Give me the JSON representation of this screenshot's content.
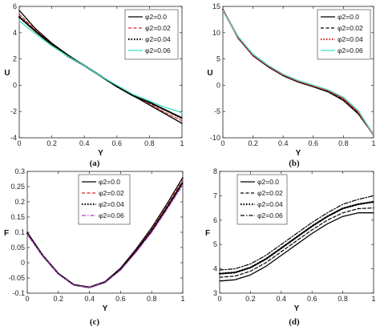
{
  "chart_data": [
    {
      "id": "a",
      "type": "line",
      "caption": "(a)",
      "xlabel": "Y",
      "ylabel": "U",
      "xlim": [
        0,
        1
      ],
      "ylim": [
        -4,
        6
      ],
      "xticks": [
        "0",
        "0.2",
        "0.4",
        "0.6",
        "0.8",
        "1"
      ],
      "yticks": [
        "-4",
        "-2",
        "0",
        "2",
        "4",
        "6"
      ],
      "legend_position": "top-right",
      "series": [
        {
          "name": "φ2=0.0",
          "color": "#000000",
          "style": "solid",
          "x": [
            0,
            0.1,
            0.2,
            0.3,
            0.4,
            0.5,
            0.6,
            0.7,
            0.8,
            0.9,
            1
          ],
          "y": [
            5.7,
            4.3,
            3.2,
            2.3,
            1.5,
            0.7,
            -0.1,
            -0.8,
            -1.5,
            -2.2,
            -2.9
          ]
        },
        {
          "name": "φ2=0.02",
          "color": "#d62728",
          "style": "dashed",
          "x": [
            0,
            0.1,
            0.2,
            0.3,
            0.4,
            0.5,
            0.6,
            0.7,
            0.8,
            0.9,
            1
          ],
          "y": [
            5.4,
            4.2,
            3.1,
            2.2,
            1.5,
            0.7,
            -0.1,
            -0.8,
            -1.4,
            -2.1,
            -2.7
          ]
        },
        {
          "name": "φ2=0.04",
          "color": "#000000",
          "style": "dotted",
          "x": [
            0,
            0.1,
            0.2,
            0.3,
            0.4,
            0.5,
            0.6,
            0.7,
            0.8,
            0.9,
            1
          ],
          "y": [
            5.2,
            4.1,
            3.1,
            2.2,
            1.5,
            0.7,
            -0.1,
            -0.8,
            -1.3,
            -1.9,
            -2.5
          ]
        },
        {
          "name": "φ2=0.06",
          "color": "#40e0c0",
          "style": "solid",
          "x": [
            0,
            0.1,
            0.2,
            0.3,
            0.4,
            0.5,
            0.6,
            0.7,
            0.8,
            0.9,
            1
          ],
          "y": [
            4.9,
            3.9,
            3.0,
            2.2,
            1.5,
            0.7,
            0.0,
            -0.7,
            -1.2,
            -1.7,
            -2.1
          ]
        }
      ]
    },
    {
      "id": "b",
      "type": "line",
      "caption": "(b)",
      "xlabel": "Y",
      "ylabel": "U",
      "xlim": [
        0,
        1
      ],
      "ylim": [
        -10,
        15
      ],
      "xticks": [
        "0",
        "0.2",
        "0.4",
        "0.6",
        "0.8",
        "1"
      ],
      "yticks": [
        "-10",
        "-5",
        "0",
        "5",
        "10",
        "15"
      ],
      "legend_position": "top-right",
      "series": [
        {
          "name": "φ2=0.0",
          "color": "#000000",
          "style": "solid",
          "x": [
            0,
            0.1,
            0.2,
            0.3,
            0.4,
            0.5,
            0.6,
            0.7,
            0.8,
            0.9,
            1
          ],
          "y": [
            14.5,
            9.0,
            5.6,
            3.5,
            1.8,
            0.6,
            -0.3,
            -1.3,
            -2.9,
            -5.5,
            -9.5
          ]
        },
        {
          "name": "φ2=0.02",
          "color": "#000000",
          "style": "dashed",
          "x": [
            0,
            0.1,
            0.2,
            0.3,
            0.4,
            0.5,
            0.6,
            0.7,
            0.8,
            0.9,
            1
          ],
          "y": [
            14.4,
            9.1,
            5.7,
            3.6,
            1.9,
            0.7,
            -0.2,
            -1.1,
            -2.7,
            -5.3,
            -9.5
          ]
        },
        {
          "name": "φ2=0.04",
          "color": "#d62728",
          "style": "dotted",
          "x": [
            0,
            0.1,
            0.2,
            0.3,
            0.4,
            0.5,
            0.6,
            0.7,
            0.8,
            0.9,
            1
          ],
          "y": [
            14.3,
            9.2,
            5.8,
            3.7,
            2.0,
            0.8,
            -0.1,
            -1.0,
            -2.5,
            -5.1,
            -9.5
          ]
        },
        {
          "name": "φ2=0.06",
          "color": "#40e0c0",
          "style": "solid",
          "x": [
            0,
            0.1,
            0.2,
            0.3,
            0.4,
            0.5,
            0.6,
            0.7,
            0.8,
            0.9,
            1
          ],
          "y": [
            14.2,
            9.3,
            5.9,
            3.8,
            2.1,
            0.9,
            0.0,
            -0.9,
            -2.3,
            -4.9,
            -9.5
          ]
        }
      ]
    },
    {
      "id": "c",
      "type": "line",
      "caption": "(c)",
      "xlabel": "Y",
      "ylabel": "F",
      "xlim": [
        0,
        1
      ],
      "ylim": [
        -0.1,
        0.3
      ],
      "xticks": [
        "0",
        "0.2",
        "0.4",
        "0.6",
        "0.8",
        "1"
      ],
      "yticks": [
        "-0.1",
        "-0.05",
        "0",
        "0.05",
        "0.1",
        "0.15",
        "0.2",
        "0.25",
        "0.3"
      ],
      "legend_position": "top-left",
      "series": [
        {
          "name": "φ2=0.0",
          "color": "#000000",
          "style": "solid",
          "x": [
            0,
            0.1,
            0.2,
            0.3,
            0.4,
            0.5,
            0.6,
            0.7,
            0.8,
            0.9,
            1
          ],
          "y": [
            0.1,
            0.025,
            -0.035,
            -0.072,
            -0.08,
            -0.062,
            -0.018,
            0.045,
            0.115,
            0.195,
            0.28
          ]
        },
        {
          "name": "φ2=0.02",
          "color": "#d62728",
          "style": "dashed",
          "x": [
            0,
            0.1,
            0.2,
            0.3,
            0.4,
            0.5,
            0.6,
            0.7,
            0.8,
            0.9,
            1
          ],
          "y": [
            0.098,
            0.024,
            -0.036,
            -0.073,
            -0.08,
            -0.063,
            -0.02,
            0.041,
            0.11,
            0.188,
            0.272
          ]
        },
        {
          "name": "φ2=0.04",
          "color": "#000000",
          "style": "dotted",
          "x": [
            0,
            0.1,
            0.2,
            0.3,
            0.4,
            0.5,
            0.6,
            0.7,
            0.8,
            0.9,
            1
          ],
          "y": [
            0.096,
            0.023,
            -0.036,
            -0.073,
            -0.081,
            -0.064,
            -0.022,
            0.038,
            0.105,
            0.182,
            0.264
          ]
        },
        {
          "name": "φ2=0.06",
          "color": "#b03cc8",
          "style": "dashdot",
          "x": [
            0,
            0.1,
            0.2,
            0.3,
            0.4,
            0.5,
            0.6,
            0.7,
            0.8,
            0.9,
            1
          ],
          "y": [
            0.094,
            0.022,
            -0.037,
            -0.074,
            -0.081,
            -0.065,
            -0.024,
            0.035,
            0.1,
            0.176,
            0.256
          ]
        }
      ]
    },
    {
      "id": "d",
      "type": "line",
      "caption": "(d)",
      "xlabel": "Y",
      "ylabel": "F",
      "xlim": [
        0,
        1
      ],
      "ylim": [
        3,
        8
      ],
      "xticks": [
        "0",
        "0.2",
        "0.4",
        "0.6",
        "0.8",
        "1"
      ],
      "yticks": [
        "3",
        "4",
        "5",
        "6",
        "7",
        "8"
      ],
      "legend_position": "top-left",
      "series": [
        {
          "name": "φ2=0.0",
          "color": "#000000",
          "style": "solid",
          "x": [
            0,
            0.1,
            0.2,
            0.3,
            0.4,
            0.5,
            0.6,
            0.7,
            0.8,
            0.9,
            1
          ],
          "y": [
            3.5,
            3.55,
            3.75,
            4.1,
            4.55,
            5.0,
            5.45,
            5.85,
            6.15,
            6.3,
            6.3
          ]
        },
        {
          "name": "φ2=0.02",
          "color": "#000000",
          "style": "dashed",
          "x": [
            0,
            0.1,
            0.2,
            0.3,
            0.4,
            0.5,
            0.6,
            0.7,
            0.8,
            0.9,
            1
          ],
          "y": [
            3.65,
            3.7,
            3.9,
            4.25,
            4.7,
            5.15,
            5.6,
            6.0,
            6.3,
            6.47,
            6.5
          ]
        },
        {
          "name": "φ2=0.04",
          "color": "#000000",
          "style": "dotted",
          "x": [
            0,
            0.1,
            0.2,
            0.3,
            0.4,
            0.5,
            0.6,
            0.7,
            0.8,
            0.9,
            1
          ],
          "y": [
            3.8,
            3.85,
            4.05,
            4.4,
            4.85,
            5.3,
            5.75,
            6.15,
            6.48,
            6.65,
            6.75
          ]
        },
        {
          "name": "φ2=0.06",
          "color": "#000000",
          "style": "dashdot",
          "x": [
            0,
            0.1,
            0.2,
            0.3,
            0.4,
            0.5,
            0.6,
            0.7,
            0.8,
            0.9,
            1
          ],
          "y": [
            3.95,
            4.0,
            4.2,
            4.55,
            5.0,
            5.45,
            5.9,
            6.3,
            6.65,
            6.85,
            7.0
          ]
        }
      ]
    }
  ]
}
